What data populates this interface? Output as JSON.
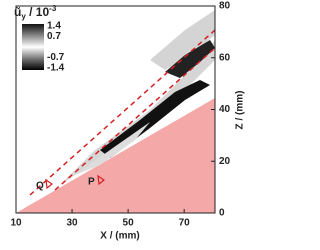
{
  "chart_data": {
    "type": "field",
    "x_label": "X / (mm)",
    "y_label": "Z / (mm)",
    "xlim": [
      10,
      81
    ],
    "ylim": [
      0,
      80
    ],
    "xticks": [
      10,
      30,
      50,
      70
    ],
    "yticks": [
      0,
      20,
      40,
      60,
      80
    ],
    "colorbar": {
      "symbol": "ũ",
      "subscript": "y",
      "unit": " / 10",
      "exponent": "-3",
      "ticks": [
        1.4,
        0.7,
        -0.7,
        -1.4
      ]
    },
    "annotations": [
      "Q",
      "P"
    ],
    "wedge_color": "#f4a8a8",
    "line_color": "#d42020"
  }
}
